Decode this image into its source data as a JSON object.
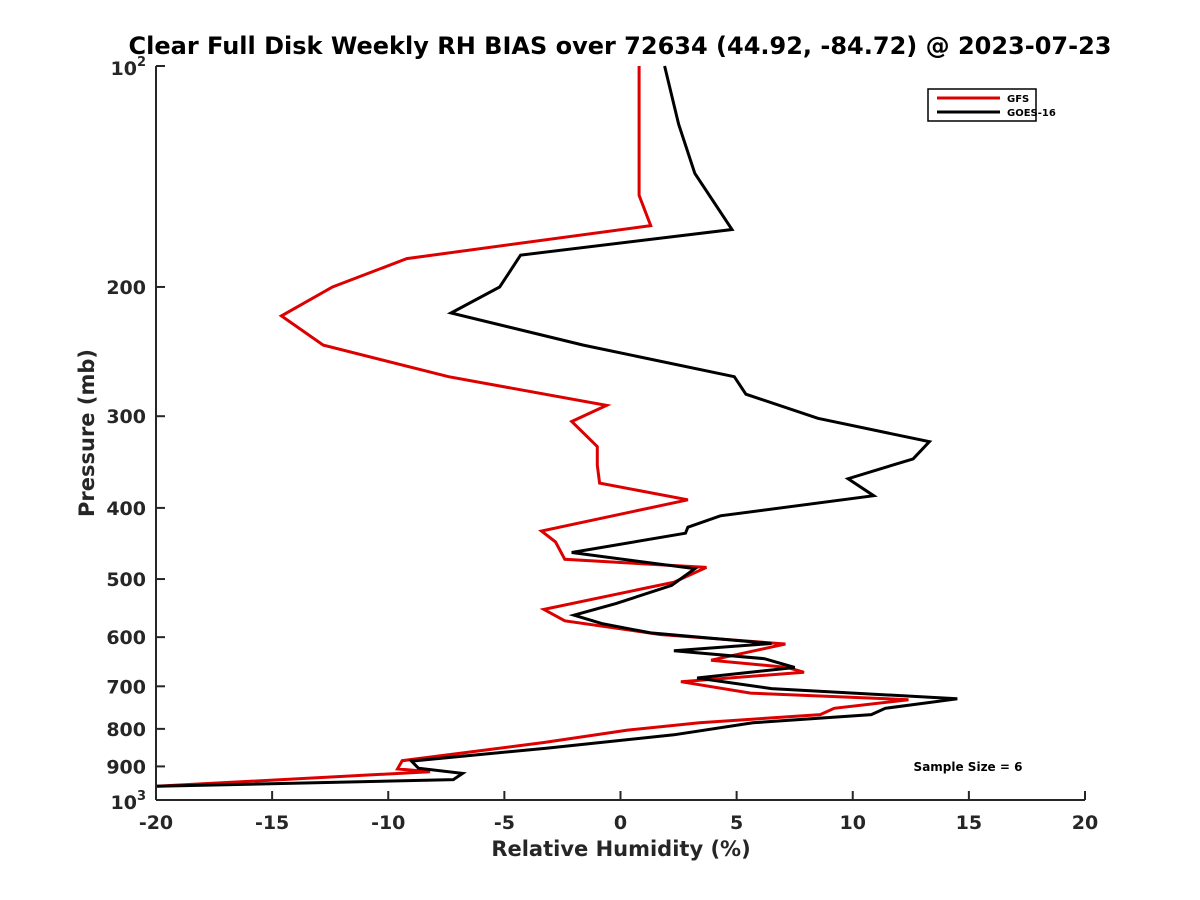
{
  "chart_data": {
    "type": "line",
    "title": "Clear Full Disk Weekly RH BIAS over 72634 (44.92, -84.72) @ 2023-07-23",
    "xlabel": "Relative Humidity (%)",
    "ylabel": "Pressure (mb)",
    "xlim": [
      -20,
      20
    ],
    "ylim": [
      100,
      1000
    ],
    "yscale": "log",
    "y_reversed": true,
    "xticks": [
      -20,
      -15,
      -10,
      -5,
      0,
      5,
      10,
      15,
      20
    ],
    "xtick_labels": [
      "-20",
      "-15",
      "-10",
      "-5",
      "0",
      "5",
      "10",
      "15",
      "20"
    ],
    "yticks": [
      200,
      300,
      400,
      500,
      600,
      700,
      800,
      900
    ],
    "ytick_labels": [
      "200",
      "300",
      "400",
      "500",
      "600",
      "700",
      "800",
      "900"
    ],
    "y_top_label": {
      "base": "10",
      "exp": "2"
    },
    "y_bottom_label": {
      "base": "10",
      "exp": "3"
    },
    "legend_position": "top-right",
    "annotation": "Sample Size = 6",
    "series": [
      {
        "name": "GFS",
        "color": "#dd0000",
        "points": [
          [
            0.8,
            100
          ],
          [
            0.8,
            125
          ],
          [
            0.8,
            150
          ],
          [
            1.3,
            165
          ],
          [
            -9.2,
            183
          ],
          [
            -12.4,
            200
          ],
          [
            -14.6,
            219
          ],
          [
            -12.8,
            240
          ],
          [
            -7.4,
            265
          ],
          [
            -0.6,
            290
          ],
          [
            -2.1,
            305
          ],
          [
            -1.0,
            330
          ],
          [
            -1.0,
            350
          ],
          [
            -0.9,
            370
          ],
          [
            2.9,
            390
          ],
          [
            -3.4,
            430
          ],
          [
            -2.8,
            445
          ],
          [
            -2.4,
            470
          ],
          [
            3.7,
            482
          ],
          [
            2.3,
            505
          ],
          [
            -3.3,
            550
          ],
          [
            -2.4,
            570
          ],
          [
            1.7,
            595
          ],
          [
            7.1,
            613
          ],
          [
            3.9,
            645
          ],
          [
            7.2,
            660
          ],
          [
            7.9,
            670
          ],
          [
            2.6,
            690
          ],
          [
            5.6,
            715
          ],
          [
            12.4,
            730
          ],
          [
            9.2,
            750
          ],
          [
            8.6,
            765
          ],
          [
            3.4,
            785
          ],
          [
            0.3,
            803
          ],
          [
            -3.3,
            835
          ],
          [
            -9.4,
            884
          ],
          [
            -9.6,
            907
          ],
          [
            -8.2,
            915
          ],
          [
            -20.0,
            958
          ]
        ]
      },
      {
        "name": "GOES-16",
        "color": "#000000",
        "points": [
          [
            1.9,
            100
          ],
          [
            2.5,
            120
          ],
          [
            3.2,
            140
          ],
          [
            4.8,
            167
          ],
          [
            -4.3,
            181
          ],
          [
            -5.2,
            200
          ],
          [
            -7.3,
            217
          ],
          [
            -1.6,
            240
          ],
          [
            4.9,
            265
          ],
          [
            5.4,
            280
          ],
          [
            8.5,
            302
          ],
          [
            13.3,
            325
          ],
          [
            12.6,
            343
          ],
          [
            9.8,
            365
          ],
          [
            10.9,
            385
          ],
          [
            4.3,
            410
          ],
          [
            2.9,
            425
          ],
          [
            2.8,
            433
          ],
          [
            -2.1,
            460
          ],
          [
            3.2,
            484
          ],
          [
            2.2,
            510
          ],
          [
            -0.2,
            540
          ],
          [
            -2.0,
            560
          ],
          [
            -0.8,
            575
          ],
          [
            1.3,
            592
          ],
          [
            6.5,
            612
          ],
          [
            2.3,
            626
          ],
          [
            6.2,
            642
          ],
          [
            7.5,
            660
          ],
          [
            3.3,
            682
          ],
          [
            6.5,
            705
          ],
          [
            14.5,
            728
          ],
          [
            11.4,
            750
          ],
          [
            10.8,
            765
          ],
          [
            5.7,
            785
          ],
          [
            2.3,
            815
          ],
          [
            -3.2,
            850
          ],
          [
            -9.0,
            885
          ],
          [
            -8.7,
            905
          ],
          [
            -6.8,
            920
          ],
          [
            -7.2,
            938
          ],
          [
            -20.0,
            958
          ]
        ]
      }
    ]
  }
}
